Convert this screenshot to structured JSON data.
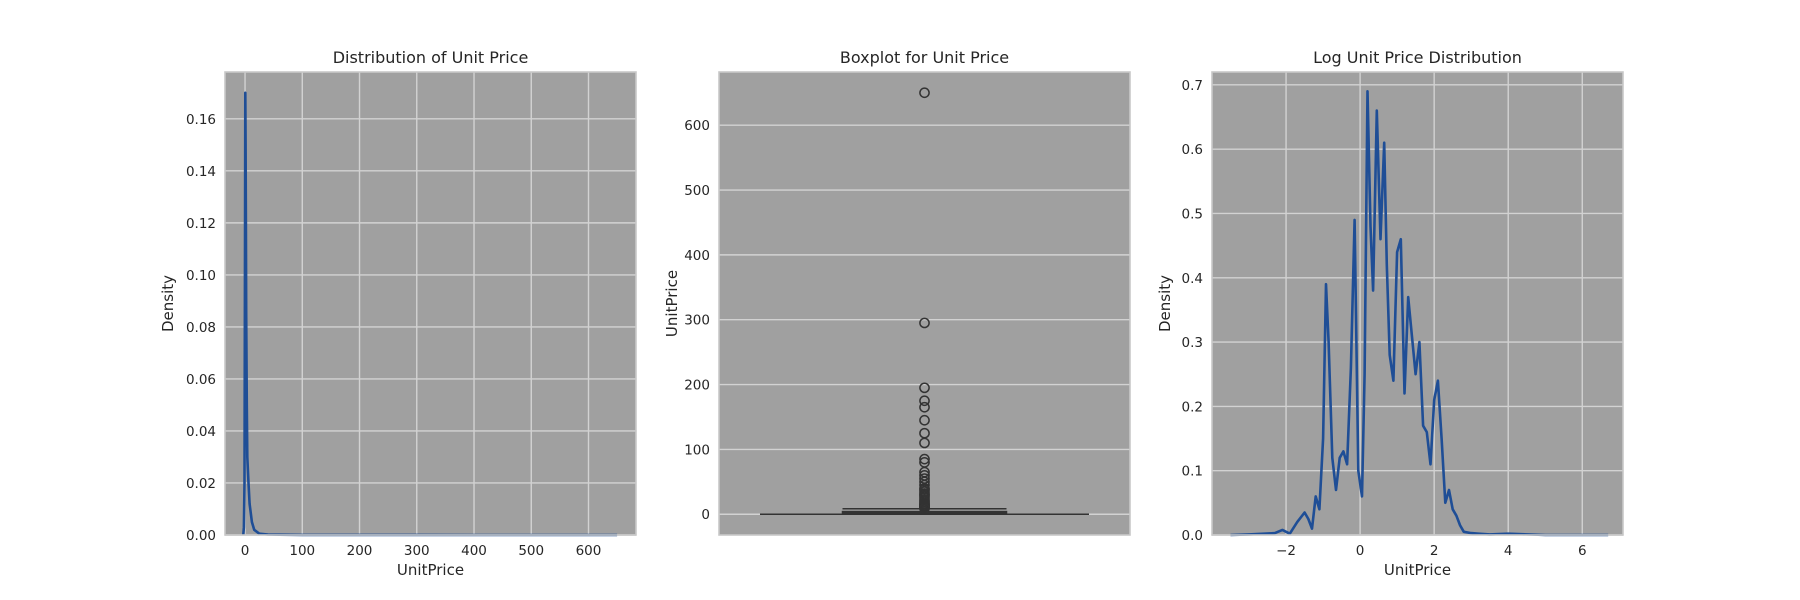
{
  "chart_data": [
    {
      "type": "line",
      "title": "Distribution of Unit Price",
      "xlabel": "UnitPrice",
      "ylabel": "Density",
      "xlim": [
        -35,
        683
      ],
      "ylim": [
        0,
        0.178
      ],
      "xticks": [
        0,
        100,
        200,
        300,
        400,
        500,
        600
      ],
      "yticks": [
        0.0,
        0.02,
        0.04,
        0.06,
        0.08,
        0.1,
        0.12,
        0.14,
        0.16
      ],
      "ytick_labels": [
        "0.00",
        "0.02",
        "0.04",
        "0.06",
        "0.08",
        "0.10",
        "0.12",
        "0.14",
        "0.16"
      ],
      "grid": true,
      "series": [
        {
          "color": "#1f4e96",
          "x": [
            -3,
            -2,
            -1,
            0,
            0.5,
            1,
            1.5,
            2,
            3,
            4,
            6,
            8,
            12,
            16,
            25,
            40,
            60,
            100,
            200,
            300,
            400,
            500,
            600,
            650
          ],
          "y": [
            0.0,
            0.003,
            0.02,
            0.11,
            0.17,
            0.15,
            0.12,
            0.085,
            0.05,
            0.03,
            0.02,
            0.012,
            0.005,
            0.002,
            0.0005,
            0.0002,
            0.0001,
            5e-05,
            3e-05,
            2e-05,
            1e-05,
            1e-05,
            1e-05,
            0.0
          ]
        }
      ]
    },
    {
      "type": "box",
      "title": "Boxplot for Unit Price",
      "xlabel": "",
      "ylabel": "UnitPrice",
      "ylim": [
        -32,
        682
      ],
      "yticks": [
        0,
        100,
        200,
        300,
        400,
        500,
        600
      ],
      "grid": true,
      "box": {
        "whisker_low": 0.0,
        "q1": 1.25,
        "median": 2.08,
        "q3": 4.13,
        "whisker_high": 8.4
      },
      "outliers": [
        650,
        295,
        195,
        175,
        165,
        145,
        125,
        110,
        85,
        80,
        65,
        60,
        55,
        50,
        45,
        40,
        38,
        35,
        32,
        30,
        28,
        25,
        22,
        20,
        18,
        16,
        15,
        14,
        13,
        12,
        11,
        10,
        9.5,
        9
      ]
    },
    {
      "type": "line",
      "title": "Log Unit Price Distribution",
      "xlabel": "UnitPrice",
      "ylabel": "Density",
      "xlim": [
        -4.0,
        7.1
      ],
      "ylim": [
        0,
        0.72
      ],
      "xticks": [
        -2,
        0,
        2,
        4,
        6
      ],
      "xtick_labels": [
        "−2",
        "0",
        "2",
        "4",
        "6"
      ],
      "yticks": [
        0.0,
        0.1,
        0.2,
        0.3,
        0.4,
        0.5,
        0.6,
        0.7
      ],
      "ytick_labels": [
        "0.0",
        "0.1",
        "0.2",
        "0.3",
        "0.4",
        "0.5",
        "0.6",
        "0.7"
      ],
      "grid": true,
      "series": [
        {
          "color": "#1f4e96",
          "x": [
            -3.5,
            -3.0,
            -2.6,
            -2.3,
            -2.1,
            -2.0,
            -1.9,
            -1.7,
            -1.5,
            -1.4,
            -1.3,
            -1.2,
            -1.1,
            -1.0,
            -0.92,
            -0.85,
            -0.75,
            -0.65,
            -0.55,
            -0.45,
            -0.35,
            -0.25,
            -0.15,
            -0.05,
            0.05,
            0.12,
            0.2,
            0.28,
            0.35,
            0.45,
            0.55,
            0.65,
            0.72,
            0.8,
            0.9,
            1.0,
            1.1,
            1.2,
            1.3,
            1.4,
            1.5,
            1.6,
            1.7,
            1.8,
            1.9,
            2.0,
            2.1,
            2.2,
            2.3,
            2.4,
            2.5,
            2.6,
            2.7,
            2.8,
            3.0,
            3.2,
            3.5,
            4.0,
            5.0,
            6.7
          ],
          "y": [
            0.0,
            0.001,
            0.002,
            0.003,
            0.008,
            0.005,
            0.002,
            0.02,
            0.035,
            0.025,
            0.01,
            0.06,
            0.04,
            0.15,
            0.39,
            0.3,
            0.12,
            0.07,
            0.12,
            0.13,
            0.11,
            0.26,
            0.49,
            0.1,
            0.06,
            0.25,
            0.69,
            0.48,
            0.38,
            0.66,
            0.46,
            0.61,
            0.42,
            0.28,
            0.24,
            0.44,
            0.46,
            0.22,
            0.37,
            0.31,
            0.25,
            0.3,
            0.17,
            0.16,
            0.11,
            0.21,
            0.24,
            0.15,
            0.05,
            0.07,
            0.04,
            0.03,
            0.015,
            0.005,
            0.003,
            0.002,
            0.001,
            0.002,
            0.0,
            0.0
          ]
        }
      ]
    }
  ]
}
